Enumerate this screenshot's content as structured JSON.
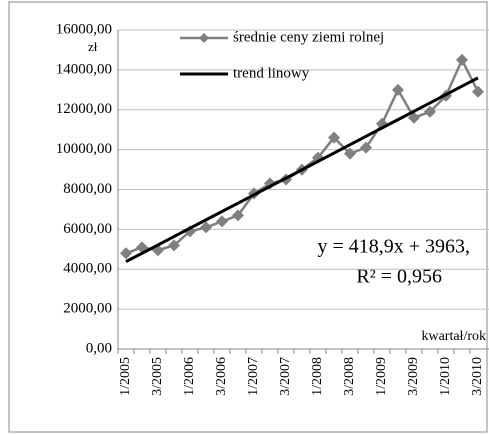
{
  "chart_data": {
    "type": "line",
    "y_unit": "zł",
    "x_label": "kwartał/rok",
    "categories": [
      "1/2005",
      null,
      "3/2005",
      null,
      "1/2006",
      null,
      "3/2006",
      null,
      "1/2007",
      null,
      "3/2007",
      null,
      "1/2008",
      null,
      "3/2008",
      null,
      "1/2009",
      null,
      "3/2009",
      null,
      "1/2010",
      null,
      "3/2010"
    ],
    "series": [
      {
        "name": "średnie ceny ziemi rolnej",
        "color": "#7f7f7f",
        "values": [
          4800,
          5100,
          4950,
          5200,
          5900,
          6100,
          6400,
          6700,
          7800,
          8300,
          8500,
          9000,
          9600,
          10600,
          9800,
          10100,
          11300,
          13000,
          11600,
          11900,
          12700,
          14500,
          12900
        ]
      },
      {
        "name": "trend linowy",
        "color": "#000000",
        "values": [
          4382,
          4801,
          5220,
          5639,
          6058,
          6477,
          6896,
          7315,
          7733,
          8152,
          8571,
          8990,
          9409,
          9828,
          10247,
          10666,
          11085,
          11504,
          11923,
          12342,
          12761,
          13180,
          13598
        ]
      }
    ],
    "annotations": [
      "y = 418,9x + 3963,",
      "R² = 0,956"
    ],
    "ylim": [
      0,
      16000
    ],
    "yticks": [
      {
        "value": 0,
        "label": "0,00"
      },
      {
        "value": 2000,
        "label": "2000,00"
      },
      {
        "value": 4000,
        "label": "4000,00"
      },
      {
        "value": 6000,
        "label": "6000,00"
      },
      {
        "value": 8000,
        "label": "8000,00"
      },
      {
        "value": 10000,
        "label": "10000,00"
      },
      {
        "value": 12000,
        "label": "12000,00"
      },
      {
        "value": 14000,
        "label": "14000,00"
      },
      {
        "value": 16000,
        "label": "16000,00"
      }
    ],
    "grid": true
  }
}
